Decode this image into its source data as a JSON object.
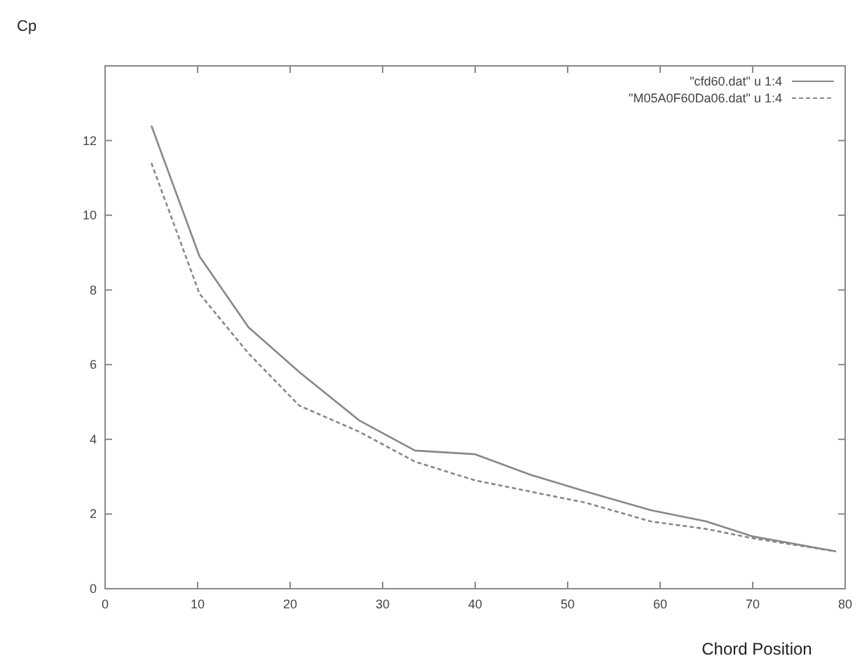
{
  "chart_data": {
    "type": "line",
    "xlabel": "Chord Position",
    "ylabel": "Cp",
    "x": [
      5,
      10.2,
      15.5,
      21,
      27.5,
      33.5,
      40,
      46,
      52,
      59,
      65,
      70,
      79
    ],
    "series": [
      {
        "name": "\"cfd60.dat\" u 1:4",
        "color": "#888888",
        "line_style": "solid",
        "values": [
          12.4,
          8.9,
          7.0,
          5.8,
          4.5,
          3.7,
          3.6,
          3.05,
          2.6,
          2.1,
          1.8,
          1.4,
          1.0
        ]
      },
      {
        "name": "\"M05A0F60Da06.dat\" u 1:4",
        "color": "#888888",
        "line_style": "dashed",
        "values": [
          11.4,
          7.9,
          6.3,
          4.9,
          4.2,
          3.4,
          2.9,
          2.6,
          2.3,
          1.8,
          1.6,
          1.35,
          1.0
        ]
      }
    ],
    "xlim": [
      0,
      80
    ],
    "xticks": [
      0,
      10,
      20,
      30,
      40,
      50,
      60,
      70,
      80
    ],
    "ylim": [
      0,
      14
    ],
    "yticks": [
      0,
      2,
      4,
      6,
      8,
      10,
      12
    ],
    "grid": false,
    "legend": "top right"
  }
}
